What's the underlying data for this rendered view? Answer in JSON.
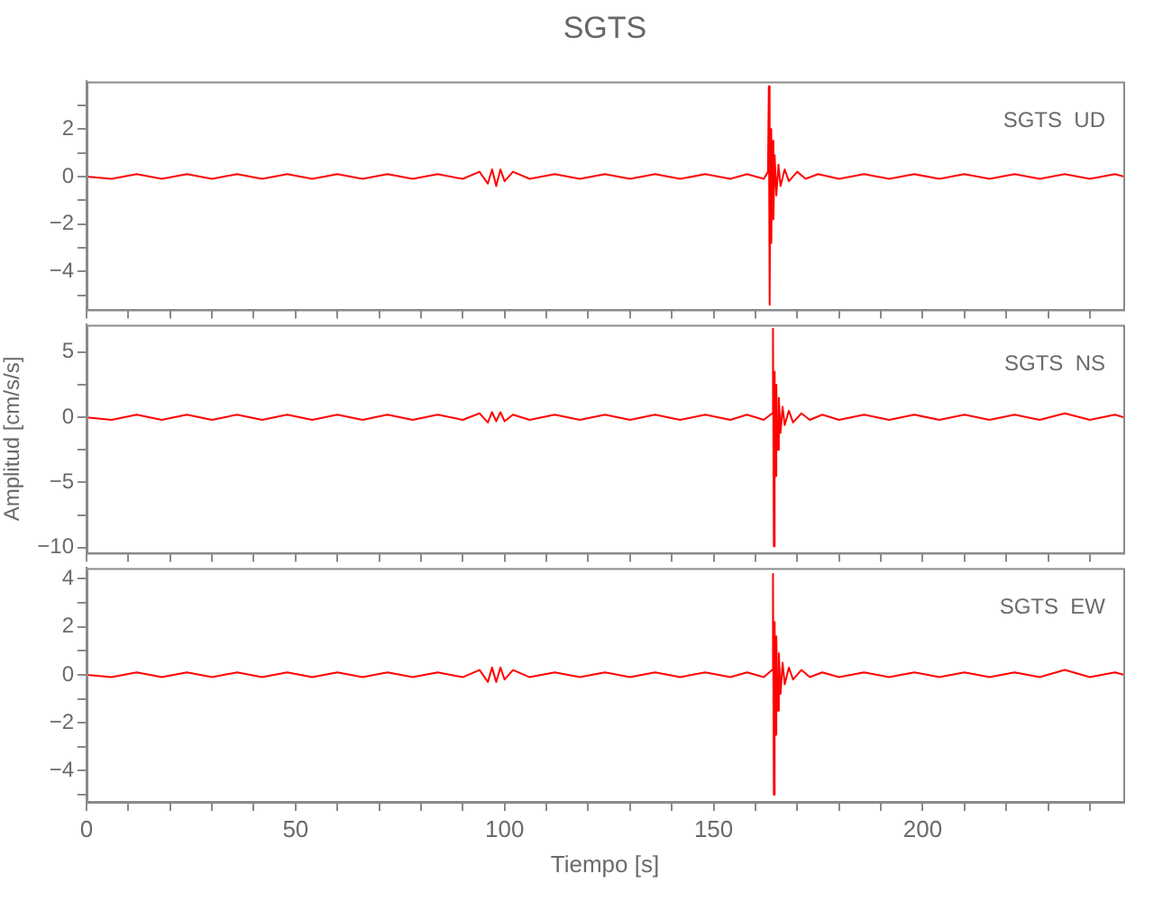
{
  "chart_data": [
    {
      "type": "line",
      "title": "SGTS",
      "annotations": [
        "SGTS  UD"
      ],
      "tick_labels": "y",
      "x": [
        0,
        6,
        12,
        18,
        24,
        30,
        36,
        42,
        48,
        54,
        60,
        66,
        72,
        78,
        84,
        90,
        94,
        96,
        97,
        98,
        99,
        100,
        102,
        106,
        112,
        118,
        124,
        130,
        136,
        142,
        148,
        154,
        158,
        162,
        163,
        163.2,
        163.4,
        163.6,
        163.8,
        164,
        164.3,
        164.6,
        165,
        165.5,
        166,
        167,
        168,
        170,
        172,
        175,
        180,
        186,
        192,
        198,
        204,
        210,
        216,
        222,
        228,
        234,
        240,
        246,
        248
      ],
      "series": [
        {
          "color": "#ff0000",
          "values": [
            0,
            -0.1,
            0.1,
            -0.1,
            0.1,
            -0.1,
            0.1,
            -0.1,
            0.1,
            -0.1,
            0.1,
            -0.1,
            0.1,
            -0.1,
            0.1,
            -0.1,
            0.2,
            -0.3,
            0.3,
            -0.4,
            0.3,
            -0.2,
            0.2,
            -0.1,
            0.1,
            -0.1,
            0.1,
            -0.1,
            0.1,
            -0.1,
            0.1,
            -0.1,
            0.1,
            -0.1,
            0.2,
            3.8,
            -5.4,
            2.0,
            -2.8,
            1.5,
            -1.8,
            0.9,
            -0.8,
            0.5,
            -0.4,
            0.3,
            -0.2,
            0.2,
            -0.1,
            0.1,
            -0.1,
            0.1,
            -0.1,
            0.1,
            -0.1,
            0.1,
            -0.1,
            0.1,
            -0.1,
            0.1,
            -0.1,
            0.1,
            0
          ]
        }
      ],
      "xlim": [
        0,
        248
      ],
      "xticks": [
        0,
        {
          "value": 10,
          "label": null
        },
        {
          "value": 20,
          "label": null
        },
        {
          "value": 30,
          "label": null
        },
        {
          "value": 40,
          "label": null
        },
        50,
        {
          "value": 60,
          "label": null
        },
        {
          "value": 70,
          "label": null
        },
        {
          "value": 80,
          "label": null
        },
        {
          "value": 90,
          "label": null
        },
        100,
        {
          "value": 110,
          "label": null
        },
        {
          "value": 120,
          "label": null
        },
        {
          "value": 130,
          "label": null
        },
        {
          "value": 140,
          "label": null
        },
        150,
        {
          "value": 160,
          "label": null
        },
        {
          "value": 170,
          "label": null
        },
        {
          "value": 180,
          "label": null
        },
        {
          "value": 190,
          "label": null
        },
        200,
        {
          "value": 210,
          "label": null
        },
        {
          "value": 220,
          "label": null
        },
        {
          "value": 230,
          "label": null
        },
        {
          "value": 240,
          "label": null
        }
      ],
      "ylim": [
        -5.6,
        4
      ],
      "yticks": [
        {
          "value": -5,
          "label": null
        },
        -4,
        {
          "value": -3,
          "label": null
        },
        -2,
        {
          "value": -1,
          "label": null
        },
        0,
        {
          "value": 1,
          "label": null
        },
        2,
        {
          "value": 3,
          "label": null
        }
      ]
    },
    {
      "type": "line",
      "ylabel": "Amplitud [cm/s/s]",
      "annotations": [
        "SGTS  NS"
      ],
      "tick_labels": "y",
      "x": [
        0,
        6,
        12,
        18,
        24,
        30,
        36,
        42,
        48,
        54,
        60,
        66,
        72,
        78,
        84,
        90,
        94,
        96,
        97,
        98,
        99,
        100,
        102,
        106,
        112,
        118,
        124,
        130,
        136,
        142,
        148,
        154,
        158,
        162,
        164,
        164.2,
        164.4,
        164.6,
        164.8,
        165,
        165.3,
        165.6,
        166,
        166.5,
        167,
        168,
        169,
        171,
        173,
        176,
        180,
        186,
        192,
        198,
        204,
        210,
        216,
        222,
        228,
        234,
        240,
        246,
        248
      ],
      "series": [
        {
          "color": "#ff0000",
          "values": [
            0,
            -0.2,
            0.2,
            -0.2,
            0.2,
            -0.2,
            0.2,
            -0.2,
            0.2,
            -0.2,
            0.2,
            -0.2,
            0.2,
            -0.2,
            0.2,
            -0.2,
            0.3,
            -0.4,
            0.4,
            -0.3,
            0.4,
            -0.3,
            0.2,
            -0.2,
            0.2,
            -0.2,
            0.2,
            -0.2,
            0.2,
            -0.2,
            0.2,
            -0.2,
            0.2,
            -0.2,
            0.3,
            6.8,
            -9.9,
            3.5,
            -4.5,
            2.5,
            -2.5,
            1.5,
            -1.2,
            0.8,
            -0.6,
            0.5,
            -0.4,
            0.3,
            -0.2,
            0.2,
            -0.2,
            0.2,
            -0.2,
            0.2,
            -0.2,
            0.2,
            -0.2,
            0.2,
            -0.2,
            0.3,
            -0.2,
            0.2,
            0
          ]
        }
      ],
      "xlim": [
        0,
        248
      ],
      "xticks": [
        0,
        {
          "value": 10,
          "label": null
        },
        {
          "value": 20,
          "label": null
        },
        {
          "value": 30,
          "label": null
        },
        {
          "value": 40,
          "label": null
        },
        50,
        {
          "value": 60,
          "label": null
        },
        {
          "value": 70,
          "label": null
        },
        {
          "value": 80,
          "label": null
        },
        {
          "value": 90,
          "label": null
        },
        100,
        {
          "value": 110,
          "label": null
        },
        {
          "value": 120,
          "label": null
        },
        {
          "value": 130,
          "label": null
        },
        {
          "value": 140,
          "label": null
        },
        150,
        {
          "value": 160,
          "label": null
        },
        {
          "value": 170,
          "label": null
        },
        {
          "value": 180,
          "label": null
        },
        {
          "value": 190,
          "label": null
        },
        200,
        {
          "value": 210,
          "label": null
        },
        {
          "value": 220,
          "label": null
        },
        {
          "value": 230,
          "label": null
        },
        {
          "value": 240,
          "label": null
        }
      ],
      "ylim": [
        -10.4,
        7.1
      ],
      "yticks": [
        -10,
        {
          "value": -7.5,
          "label": null
        },
        -5,
        {
          "value": -2.5,
          "label": null
        },
        0,
        {
          "value": 2.5,
          "label": null
        },
        5
      ]
    },
    {
      "type": "line",
      "xlabel": "Tiempo [s]",
      "annotations": [
        "SGTS  EW"
      ],
      "x": [
        0,
        6,
        12,
        18,
        24,
        30,
        36,
        42,
        48,
        54,
        60,
        66,
        72,
        78,
        84,
        90,
        94,
        96,
        97,
        98,
        99,
        100,
        102,
        106,
        112,
        118,
        124,
        130,
        136,
        142,
        148,
        154,
        158,
        162,
        164,
        164.2,
        164.4,
        164.6,
        164.8,
        165,
        165.3,
        165.6,
        166,
        166.5,
        167,
        168,
        169,
        171,
        173,
        176,
        180,
        186,
        192,
        198,
        204,
        210,
        216,
        222,
        228,
        234,
        240,
        246,
        248
      ],
      "series": [
        {
          "color": "#ff0000",
          "values": [
            0,
            -0.1,
            0.1,
            -0.1,
            0.1,
            -0.1,
            0.1,
            -0.1,
            0.1,
            -0.1,
            0.1,
            -0.1,
            0.1,
            -0.1,
            0.1,
            -0.1,
            0.2,
            -0.3,
            0.3,
            -0.3,
            0.3,
            -0.2,
            0.2,
            -0.1,
            0.1,
            -0.1,
            0.1,
            -0.1,
            0.1,
            -0.1,
            0.1,
            -0.1,
            0.1,
            -0.1,
            0.2,
            4.2,
            -5.0,
            2.2,
            -2.5,
            1.6,
            -1.5,
            0.9,
            -0.8,
            0.5,
            -0.4,
            0.3,
            -0.2,
            0.2,
            -0.1,
            0.1,
            -0.1,
            0.1,
            -0.1,
            0.1,
            -0.1,
            0.1,
            -0.1,
            0.1,
            -0.1,
            0.2,
            -0.1,
            0.1,
            0
          ]
        }
      ],
      "xlim": [
        0,
        248
      ],
      "xticks": [
        0,
        {
          "value": 10,
          "label": null
        },
        {
          "value": 20,
          "label": null
        },
        {
          "value": 30,
          "label": null
        },
        {
          "value": 40,
          "label": null
        },
        50,
        {
          "value": 60,
          "label": null
        },
        {
          "value": 70,
          "label": null
        },
        {
          "value": 80,
          "label": null
        },
        {
          "value": 90,
          "label": null
        },
        100,
        {
          "value": 110,
          "label": null
        },
        {
          "value": 120,
          "label": null
        },
        {
          "value": 130,
          "label": null
        },
        {
          "value": 140,
          "label": null
        },
        150,
        {
          "value": 160,
          "label": null
        },
        {
          "value": 170,
          "label": null
        },
        {
          "value": 180,
          "label": null
        },
        {
          "value": 190,
          "label": null
        },
        200,
        {
          "value": 210,
          "label": null
        },
        {
          "value": 220,
          "label": null
        },
        {
          "value": 230,
          "label": null
        },
        {
          "value": 240,
          "label": null
        }
      ],
      "ylim": [
        -5.3,
        4.45
      ],
      "yticks": [
        {
          "value": -5,
          "label": null
        },
        -4,
        {
          "value": -3,
          "label": null
        },
        -2,
        {
          "value": -1,
          "label": null
        },
        0,
        {
          "value": 1,
          "label": null
        },
        2,
        {
          "value": 3,
          "label": null
        },
        4
      ]
    }
  ]
}
